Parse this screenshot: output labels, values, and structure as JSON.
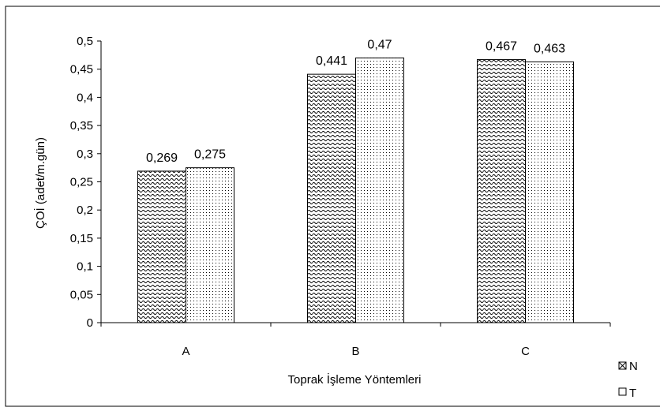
{
  "chart_data": {
    "type": "bar",
    "categories": [
      "A",
      "B",
      "C"
    ],
    "series": [
      {
        "name": "N",
        "values": [
          0.269,
          0.441,
          0.467
        ],
        "pattern": "wave"
      },
      {
        "name": "T",
        "values": [
          0.275,
          0.47,
          0.463
        ],
        "pattern": "dots"
      }
    ],
    "data_labels": [
      [
        "0,269",
        "0,441",
        "0,467"
      ],
      [
        "0,275",
        "0,47",
        "0,463"
      ]
    ],
    "y_ticks": [
      "0",
      "0,05",
      "0,1",
      "0,15",
      "0,2",
      "0,25",
      "0,3",
      "0,35",
      "0,4",
      "0,45",
      "0,5"
    ],
    "ylim": [
      0,
      0.5
    ],
    "xlabel": "Toprak İşleme Yöntemleri",
    "ylabel": "ÇOİ (adet/m.gün)",
    "title": "",
    "grid": false,
    "legend_position": "bottom-right (clipped)"
  }
}
